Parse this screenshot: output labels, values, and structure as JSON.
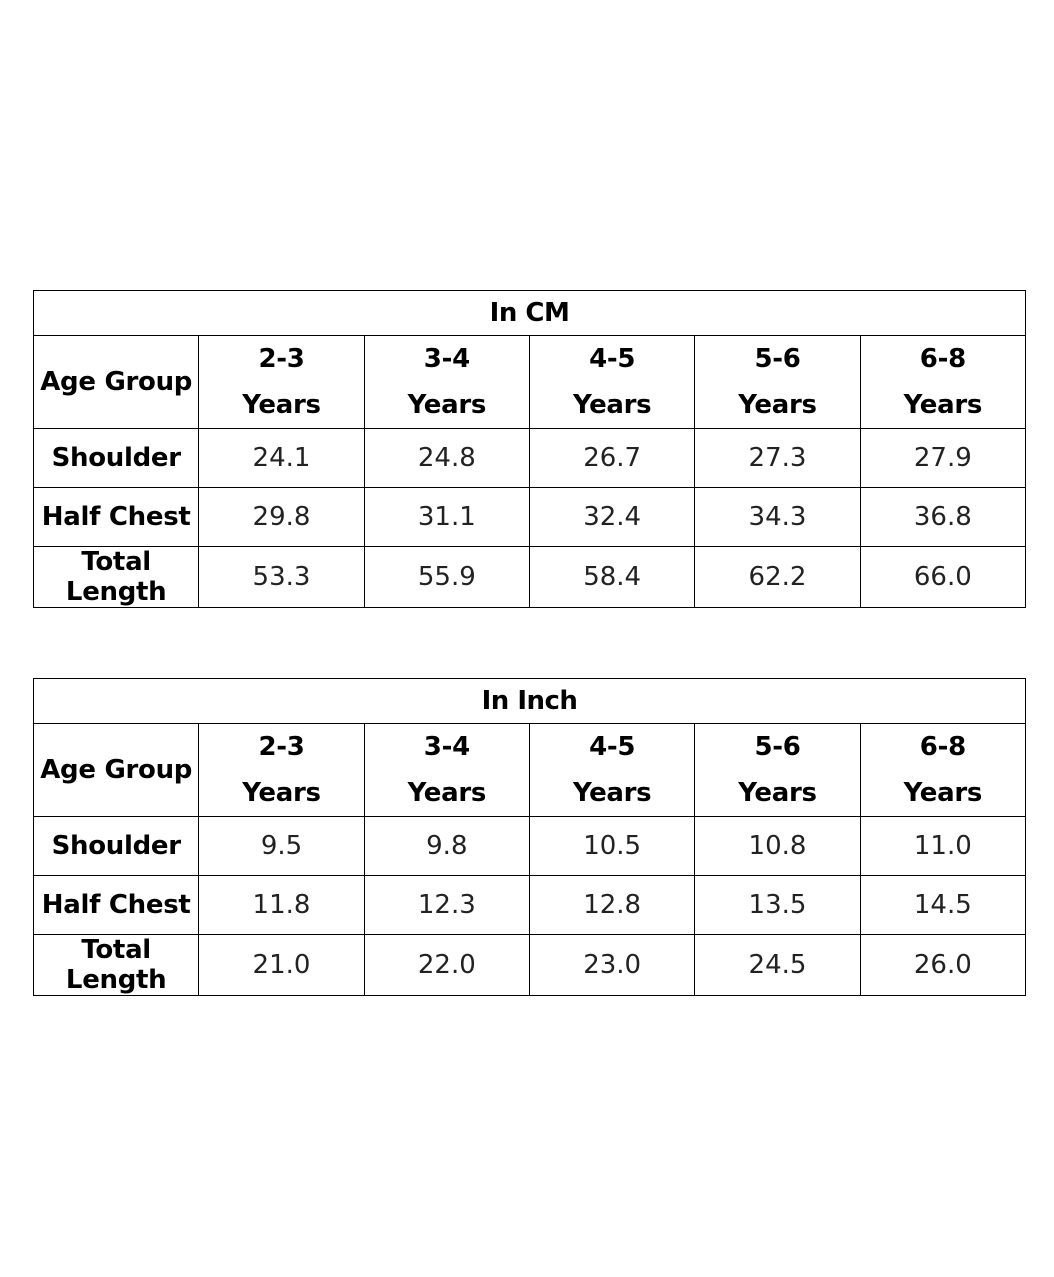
{
  "tables": [
    {
      "id": "table-cm",
      "caption": "In CM",
      "header_label": "Age Group",
      "age_groups": [
        {
          "range": "2-3",
          "unit": "Years"
        },
        {
          "range": "3-4",
          "unit": "Years"
        },
        {
          "range": "4-5",
          "unit": "Years"
        },
        {
          "range": "5-6",
          "unit": "Years"
        },
        {
          "range": "6-8",
          "unit": "Years"
        }
      ],
      "rows": [
        {
          "label": "Shoulder",
          "values": [
            "24.1",
            "24.8",
            "26.7",
            "27.3",
            "27.9"
          ]
        },
        {
          "label": "Half Chest",
          "values": [
            "29.8",
            "31.1",
            "32.4",
            "34.3",
            "36.8"
          ]
        },
        {
          "label": "Total Length",
          "values": [
            "53.3",
            "55.9",
            "58.4",
            "62.2",
            "66.0"
          ]
        }
      ]
    },
    {
      "id": "table-inch",
      "caption": "In Inch",
      "header_label": "Age Group",
      "age_groups": [
        {
          "range": "2-3",
          "unit": "Years"
        },
        {
          "range": "3-4",
          "unit": "Years"
        },
        {
          "range": "4-5",
          "unit": "Years"
        },
        {
          "range": "5-6",
          "unit": "Years"
        },
        {
          "range": "6-8",
          "unit": "Years"
        }
      ],
      "rows": [
        {
          "label": "Shoulder",
          "values": [
            "9.5",
            "9.8",
            "10.5",
            "10.8",
            "11.0"
          ]
        },
        {
          "label": "Half Chest",
          "values": [
            "11.8",
            "12.3",
            "12.8",
            "13.5",
            "14.5"
          ]
        },
        {
          "label": "Total Length",
          "values": [
            "21.0",
            "22.0",
            "23.0",
            "24.5",
            "26.0"
          ]
        }
      ]
    }
  ]
}
